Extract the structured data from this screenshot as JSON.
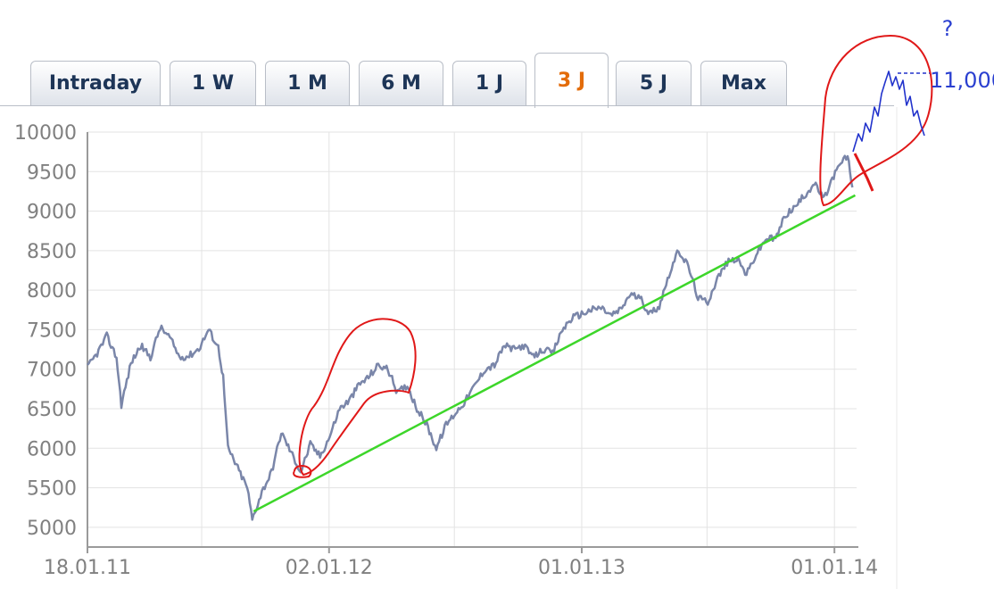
{
  "tabs": [
    {
      "label": "Intraday",
      "active": false
    },
    {
      "label": "1 W",
      "active": false
    },
    {
      "label": "1 M",
      "active": false
    },
    {
      "label": "6 M",
      "active": false
    },
    {
      "label": "1 J",
      "active": false
    },
    {
      "label": "3 J",
      "active": true
    },
    {
      "label": "5 J",
      "active": false
    },
    {
      "label": "Max",
      "active": false
    }
  ],
  "colors": {
    "line": "#7a86a9",
    "trend": "#3dd62a",
    "annotation_red": "#e01818",
    "annotation_blue": "#2233cc",
    "grid": "#e3e3e3",
    "active_tab": "#e36c0a"
  },
  "chart_data": {
    "type": "line",
    "title": "",
    "xlabel": "",
    "ylabel": "",
    "ylim": [
      4750,
      10000
    ],
    "xlim": [
      "2011-01-18",
      "2014-02-02"
    ],
    "yticks": [
      5000,
      5500,
      6000,
      6500,
      7000,
      7500,
      8000,
      8500,
      9000,
      9500,
      10000
    ],
    "xtick_labels": [
      {
        "label": "18.01.11",
        "date": "2011-01-18"
      },
      {
        "label": "02.01.12",
        "date": "2012-01-02"
      },
      {
        "label": "01.01.13",
        "date": "2013-01-01"
      },
      {
        "label": "01.01.14",
        "date": "2014-01-01"
      }
    ],
    "grid": true,
    "series": [
      {
        "values": [
          [
            "2011-01-18",
            7020
          ],
          [
            "2011-02-01",
            7200
          ],
          [
            "2011-02-15",
            7420
          ],
          [
            "2011-03-01",
            7150
          ],
          [
            "2011-03-08",
            6550
          ],
          [
            "2011-03-22",
            7080
          ],
          [
            "2011-04-05",
            7300
          ],
          [
            "2011-04-19",
            7150
          ],
          [
            "2011-05-03",
            7530
          ],
          [
            "2011-05-17",
            7400
          ],
          [
            "2011-05-31",
            7150
          ],
          [
            "2011-06-14",
            7170
          ],
          [
            "2011-06-28",
            7260
          ],
          [
            "2011-07-12",
            7500
          ],
          [
            "2011-07-26",
            7280
          ],
          [
            "2011-08-02",
            6900
          ],
          [
            "2011-08-09",
            6000
          ],
          [
            "2011-08-23",
            5750
          ],
          [
            "2011-09-06",
            5500
          ],
          [
            "2011-09-13",
            5100
          ],
          [
            "2011-09-27",
            5450
          ],
          [
            "2011-10-11",
            5700
          ],
          [
            "2011-10-25",
            6200
          ],
          [
            "2011-11-08",
            5950
          ],
          [
            "2011-11-22",
            5700
          ],
          [
            "2011-12-06",
            6050
          ],
          [
            "2011-12-20",
            5900
          ],
          [
            "2012-01-03",
            6150
          ],
          [
            "2012-01-17",
            6500
          ],
          [
            "2012-01-31",
            6600
          ],
          [
            "2012-02-14",
            6800
          ],
          [
            "2012-02-28",
            6900
          ],
          [
            "2012-03-13",
            7050
          ],
          [
            "2012-03-27",
            7000
          ],
          [
            "2012-04-10",
            6700
          ],
          [
            "2012-04-24",
            6800
          ],
          [
            "2012-05-08",
            6500
          ],
          [
            "2012-05-22",
            6300
          ],
          [
            "2012-06-05",
            6000
          ],
          [
            "2012-06-19",
            6300
          ],
          [
            "2012-07-03",
            6450
          ],
          [
            "2012-07-17",
            6600
          ],
          [
            "2012-07-31",
            6800
          ],
          [
            "2012-08-14",
            7000
          ],
          [
            "2012-08-28",
            7050
          ],
          [
            "2012-09-11",
            7300
          ],
          [
            "2012-09-25",
            7250
          ],
          [
            "2012-10-09",
            7300
          ],
          [
            "2012-10-23",
            7150
          ],
          [
            "2012-11-06",
            7250
          ],
          [
            "2012-11-20",
            7200
          ],
          [
            "2012-12-04",
            7500
          ],
          [
            "2012-12-18",
            7650
          ],
          [
            "2013-01-01",
            7700
          ],
          [
            "2013-01-15",
            7750
          ],
          [
            "2013-01-29",
            7780
          ],
          [
            "2013-02-12",
            7680
          ],
          [
            "2013-02-26",
            7750
          ],
          [
            "2013-03-12",
            7950
          ],
          [
            "2013-03-26",
            7900
          ],
          [
            "2013-04-09",
            7700
          ],
          [
            "2013-04-23",
            7800
          ],
          [
            "2013-05-07",
            8200
          ],
          [
            "2013-05-21",
            8500
          ],
          [
            "2013-06-04",
            8300
          ],
          [
            "2013-06-18",
            7900
          ],
          [
            "2013-07-02",
            7850
          ],
          [
            "2013-07-16",
            8150
          ],
          [
            "2013-07-30",
            8350
          ],
          [
            "2013-08-13",
            8400
          ],
          [
            "2013-08-27",
            8200
          ],
          [
            "2013-09-10",
            8450
          ],
          [
            "2013-09-24",
            8650
          ],
          [
            "2013-10-08",
            8650
          ],
          [
            "2013-10-22",
            8950
          ],
          [
            "2013-11-05",
            9050
          ],
          [
            "2013-11-19",
            9200
          ],
          [
            "2013-12-03",
            9350
          ],
          [
            "2013-12-17",
            9150
          ],
          [
            "2013-12-31",
            9450
          ],
          [
            "2014-01-14",
            9650
          ],
          [
            "2014-01-20",
            9700
          ],
          [
            "2014-01-27",
            9300
          ]
        ]
      },
      {
        "values": [
          [
            "2011-09-15",
            5200
          ],
          [
            "2014-01-31",
            9200
          ]
        ]
      }
    ],
    "annotations": [
      {
        "type": "text",
        "text": "?"
      },
      {
        "type": "text",
        "text": "11,000"
      }
    ]
  }
}
